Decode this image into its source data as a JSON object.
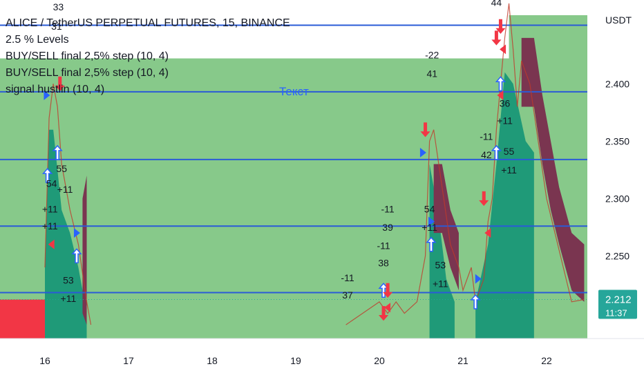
{
  "legend": {
    "title": "ALICE / TetherUS PERPETUAL FUTURES, 15, BINANCE",
    "indicators": [
      "2.5 % Levels",
      "BUY/SELL final 2,5% step (10, 4)",
      "BUY/SELL final 2,5% step (10, 4)",
      "signal hustlin (10, 4)"
    ]
  },
  "colors": {
    "background_zone": "#87c98a",
    "bull_band": "#1f9a78",
    "bear_band": "#7a3550",
    "level_line": "#2a5bd7",
    "red_zone": "#f23645",
    "price_badge": "#26a69a",
    "buy_arrow": "#2962ff",
    "sell_arrow": "#f23645"
  },
  "chart_data": {
    "type": "line",
    "title": "ALICE / TetherUS PERPETUAL FUTURES, 15, BINANCE",
    "x_ticks": [
      "16",
      "17",
      "18",
      "19",
      "20",
      "21",
      "22"
    ],
    "y_unit": "USDT",
    "y_ticks": [
      "2.400",
      "2.350",
      "2.300",
      "2.250"
    ],
    "ylim": [
      2.178,
      2.473
    ],
    "level_lines": [
      2.451,
      2.393,
      2.334,
      2.276,
      2.218
    ],
    "last_price": "2.212",
    "countdown": "11:37",
    "annotation_text": "Текст",
    "price_path": [
      [
        16.0,
        2.24
      ],
      [
        16.05,
        2.37
      ],
      [
        16.1,
        2.4
      ],
      [
        16.15,
        2.38
      ],
      [
        16.2,
        2.33
      ],
      [
        16.3,
        2.29
      ],
      [
        16.4,
        2.26
      ],
      [
        16.5,
        2.21
      ],
      [
        16.55,
        2.19
      ],
      [
        19.6,
        2.19
      ],
      [
        19.8,
        2.2
      ],
      [
        20.0,
        2.21
      ],
      [
        20.1,
        2.2
      ],
      [
        20.2,
        2.21
      ],
      [
        20.3,
        2.2
      ],
      [
        20.45,
        2.21
      ],
      [
        20.55,
        2.25
      ],
      [
        20.6,
        2.35
      ],
      [
        20.65,
        2.36
      ],
      [
        20.75,
        2.31
      ],
      [
        20.85,
        2.26
      ],
      [
        20.95,
        2.24
      ],
      [
        21.0,
        2.22
      ],
      [
        21.1,
        2.24
      ],
      [
        21.15,
        2.21
      ],
      [
        21.25,
        2.23
      ],
      [
        21.3,
        2.28
      ],
      [
        21.35,
        2.3
      ],
      [
        21.4,
        2.36
      ],
      [
        21.45,
        2.4
      ],
      [
        21.5,
        2.44
      ],
      [
        21.55,
        2.47
      ],
      [
        21.6,
        2.43
      ],
      [
        21.65,
        2.38
      ],
      [
        21.7,
        2.42
      ],
      [
        21.8,
        2.4
      ],
      [
        21.9,
        2.35
      ],
      [
        22.0,
        2.3
      ],
      [
        22.1,
        2.27
      ],
      [
        22.2,
        2.24
      ],
      [
        22.3,
        2.21
      ],
      [
        22.45,
        2.212
      ]
    ],
    "bull_band_segments": [
      [
        [
          16.0,
          2.178,
          2.24
        ],
        [
          16.05,
          2.178,
          2.36
        ],
        [
          16.1,
          2.178,
          2.36
        ],
        [
          16.2,
          2.178,
          2.29
        ],
        [
          16.3,
          2.178,
          2.27
        ],
        [
          16.4,
          2.178,
          2.24
        ],
        [
          16.5,
          2.178,
          2.2
        ]
      ],
      [
        [
          20.6,
          2.178,
          2.33
        ],
        [
          20.7,
          2.178,
          2.29
        ],
        [
          20.8,
          2.178,
          2.23
        ],
        [
          20.9,
          2.178,
          2.21
        ]
      ],
      [
        [
          21.15,
          2.178,
          2.21
        ],
        [
          21.3,
          2.178,
          2.26
        ],
        [
          21.4,
          2.178,
          2.33
        ],
        [
          21.5,
          2.178,
          2.41
        ],
        [
          21.6,
          2.178,
          2.4
        ],
        [
          21.75,
          2.178,
          2.35
        ],
        [
          21.85,
          2.178,
          2.34
        ]
      ]
    ],
    "bear_band_segments": [
      [
        [
          16.45,
          2.3,
          2.2
        ],
        [
          16.5,
          2.32,
          2.19
        ]
      ],
      [
        [
          20.65,
          2.33,
          2.27
        ],
        [
          20.75,
          2.33,
          2.27
        ],
        [
          20.85,
          2.29,
          2.24
        ],
        [
          20.95,
          2.27,
          2.22
        ]
      ],
      [
        [
          21.7,
          2.44,
          2.38
        ],
        [
          21.85,
          2.44,
          2.38
        ],
        [
          21.95,
          2.39,
          2.33
        ],
        [
          22.05,
          2.35,
          2.29
        ],
        [
          22.15,
          2.31,
          2.26
        ],
        [
          22.3,
          2.27,
          2.22
        ],
        [
          22.45,
          2.26,
          2.21
        ]
      ]
    ],
    "signals": [
      {
        "day": 16.02,
        "price": 2.39,
        "dir": "buy-tri"
      },
      {
        "day": 16.18,
        "price": 2.4,
        "dir": "sell"
      },
      {
        "day": 16.15,
        "price": 2.34,
        "dir": "buy"
      },
      {
        "day": 16.03,
        "price": 2.32,
        "dir": "buy"
      },
      {
        "day": 16.08,
        "price": 2.26,
        "dir": "sell-tri"
      },
      {
        "day": 16.38,
        "price": 2.27,
        "dir": "buy-tri"
      },
      {
        "day": 16.38,
        "price": 2.25,
        "dir": "buy"
      },
      {
        "day": 20.05,
        "price": 2.22,
        "dir": "buy"
      },
      {
        "day": 20.1,
        "price": 2.22,
        "dir": "sell"
      },
      {
        "day": 20.05,
        "price": 2.2,
        "dir": "sell"
      },
      {
        "day": 20.1,
        "price": 2.205,
        "dir": "sell-tri"
      },
      {
        "day": 20.55,
        "price": 2.36,
        "dir": "sell"
      },
      {
        "day": 20.52,
        "price": 2.34,
        "dir": "buy-tri"
      },
      {
        "day": 20.62,
        "price": 2.28,
        "dir": "buy-tri"
      },
      {
        "day": 20.62,
        "price": 2.26,
        "dir": "buy"
      },
      {
        "day": 21.25,
        "price": 2.3,
        "dir": "sell"
      },
      {
        "day": 21.3,
        "price": 2.27,
        "dir": "sell-tri"
      },
      {
        "day": 21.18,
        "price": 2.23,
        "dir": "buy-tri"
      },
      {
        "day": 21.15,
        "price": 2.21,
        "dir": "buy"
      },
      {
        "day": 21.45,
        "price": 2.45,
        "dir": "sell"
      },
      {
        "day": 21.4,
        "price": 2.44,
        "dir": "sell"
      },
      {
        "day": 21.48,
        "price": 2.43,
        "dir": "sell-tri"
      },
      {
        "day": 21.45,
        "price": 2.4,
        "dir": "buy"
      },
      {
        "day": 21.45,
        "price": 2.39,
        "dir": "sell-tri"
      },
      {
        "day": 21.4,
        "price": 2.34,
        "dir": "buy"
      }
    ],
    "labels": [
      {
        "day": 16.16,
        "price": 2.464,
        "text": "33"
      },
      {
        "day": 16.14,
        "price": 2.447,
        "text": "31"
      },
      {
        "day": 16.2,
        "price": 2.323,
        "text": "55"
      },
      {
        "day": 16.08,
        "price": 2.31,
        "text": "54"
      },
      {
        "day": 16.24,
        "price": 2.305,
        "text": "+11"
      },
      {
        "day": 16.06,
        "price": 2.288,
        "text": "+11"
      },
      {
        "day": 16.06,
        "price": 2.273,
        "text": "+11"
      },
      {
        "day": 16.28,
        "price": 2.226,
        "text": "53"
      },
      {
        "day": 16.28,
        "price": 2.21,
        "text": "+11"
      },
      {
        "day": 19.62,
        "price": 2.228,
        "text": "-11"
      },
      {
        "day": 19.62,
        "price": 2.213,
        "text": "37"
      },
      {
        "day": 20.1,
        "price": 2.288,
        "text": "-11"
      },
      {
        "day": 20.1,
        "price": 2.272,
        "text": "39"
      },
      {
        "day": 20.05,
        "price": 2.256,
        "text": "-11"
      },
      {
        "day": 20.05,
        "price": 2.241,
        "text": "38"
      },
      {
        "day": 20.63,
        "price": 2.422,
        "text": "-22"
      },
      {
        "day": 20.63,
        "price": 2.406,
        "text": "41"
      },
      {
        "day": 20.6,
        "price": 2.288,
        "text": "54"
      },
      {
        "day": 20.6,
        "price": 2.272,
        "text": "+11"
      },
      {
        "day": 20.73,
        "price": 2.239,
        "text": "53"
      },
      {
        "day": 20.73,
        "price": 2.223,
        "text": "+11"
      },
      {
        "day": 21.28,
        "price": 2.351,
        "text": "-11"
      },
      {
        "day": 21.28,
        "price": 2.335,
        "text": "42"
      },
      {
        "day": 21.55,
        "price": 2.338,
        "text": "55"
      },
      {
        "day": 21.55,
        "price": 2.322,
        "text": "+11"
      },
      {
        "day": 21.5,
        "price": 2.38,
        "text": "36"
      },
      {
        "day": 21.5,
        "price": 2.365,
        "text": "+11"
      },
      {
        "day": 21.4,
        "price": 2.468,
        "text": "44"
      }
    ]
  }
}
